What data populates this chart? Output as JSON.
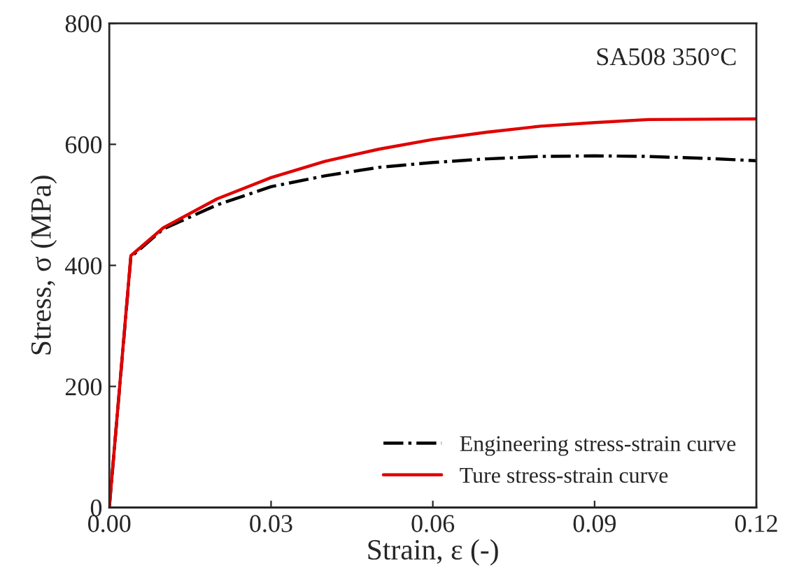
{
  "chart_data": {
    "type": "line",
    "xlabel": "Strain, ε (-)",
    "ylabel": "Stress, σ (MPa)",
    "xlim": [
      0,
      0.12
    ],
    "ylim": [
      0,
      800
    ],
    "xticks": [
      {
        "value": 0,
        "label": "0.00"
      },
      0.03,
      0.06,
      0.09,
      0.12
    ],
    "yticks": [
      0,
      200,
      400,
      600,
      800
    ],
    "grid": false,
    "legend": "bottom right",
    "marker": "none",
    "annotations": [
      "SA508 350°C"
    ],
    "series": [
      {
        "name": "Engineering stress-strain curve",
        "color": "#000000",
        "line_style": "dashdot",
        "x": [
          0,
          0.004,
          0.01,
          0.02,
          0.03,
          0.04,
          0.05,
          0.06,
          0.07,
          0.08,
          0.09,
          0.1,
          0.11,
          0.12
        ],
        "values": [
          0,
          414,
          460,
          500,
          530,
          548,
          562,
          570,
          576,
          580,
          581,
          580,
          577,
          573
        ]
      },
      {
        "name": "Ture stress-strain curve",
        "color": "#e00000",
        "line_style": "solid",
        "x": [
          0,
          0.004,
          0.01,
          0.02,
          0.03,
          0.04,
          0.05,
          0.06,
          0.07,
          0.08,
          0.09,
          0.1,
          0.12
        ],
        "values": [
          0,
          416,
          462,
          510,
          545,
          572,
          592,
          608,
          620,
          630,
          636,
          641,
          642
        ]
      }
    ]
  }
}
